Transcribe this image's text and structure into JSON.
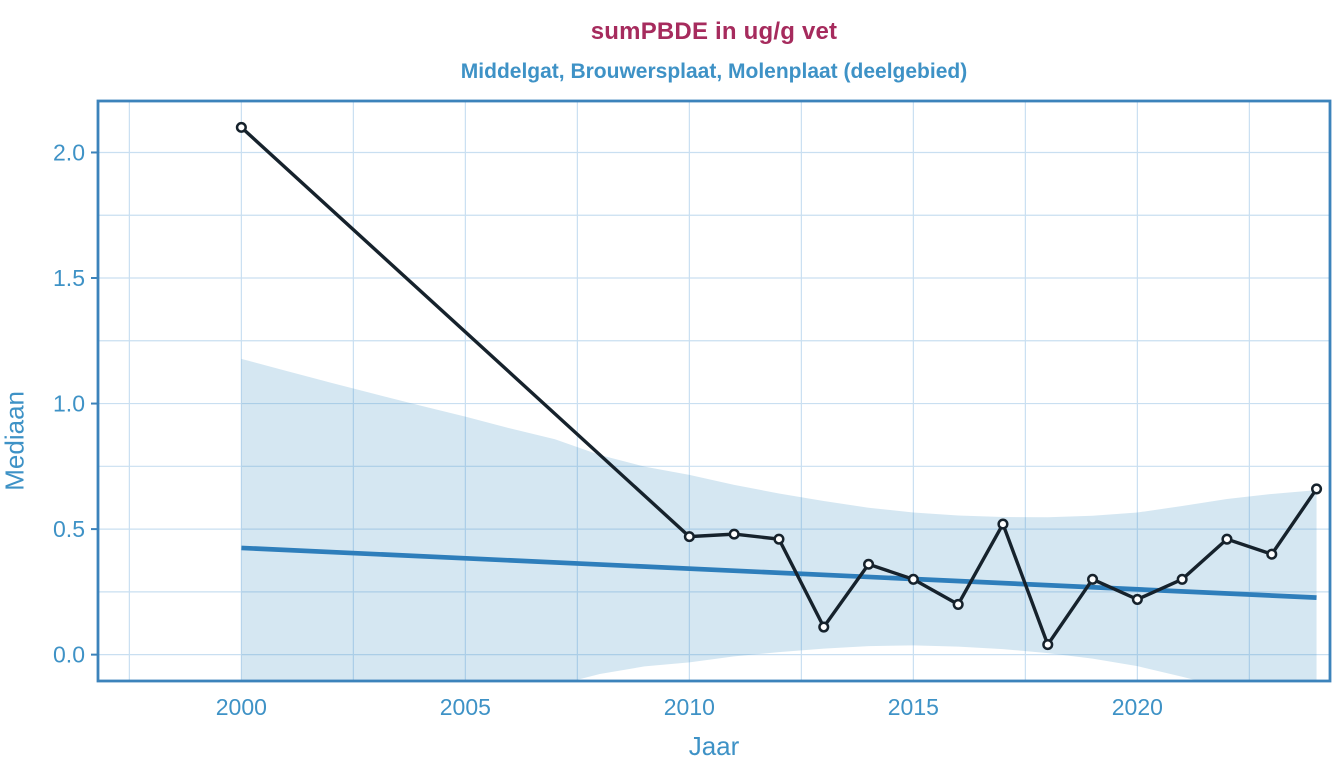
{
  "title": {
    "text": "sumPBDE in ug/g vet",
    "color": "#A62B5D"
  },
  "subtitle": {
    "text": "Middelgat, Brouwersplaat, Molenplaat (deelgebied)",
    "color": "#3E92C6"
  },
  "chart_data": {
    "type": "line",
    "title": "sumPBDE in ug/g vet",
    "subtitle": "Middelgat, Brouwersplaat, Molenplaat (deelgebied)",
    "xlabel": "Jaar",
    "ylabel": "Mediaan",
    "xlim": [
      1996.8,
      2024.3
    ],
    "ylim": [
      -0.105,
      2.205
    ],
    "grid": true,
    "legend": "none",
    "x_ticks": [
      {
        "v": 2000,
        "label": "2000"
      },
      {
        "v": 2005,
        "label": "2005"
      },
      {
        "v": 2010,
        "label": "2010"
      },
      {
        "v": 2015,
        "label": "2015"
      },
      {
        "v": 2020,
        "label": "2020"
      }
    ],
    "y_ticks": [
      {
        "v": 0.0,
        "label": "0.0"
      },
      {
        "v": 0.5,
        "label": "0.5"
      },
      {
        "v": 1.0,
        "label": "1.0"
      },
      {
        "v": 1.5,
        "label": "1.5"
      },
      {
        "v": 2.0,
        "label": "2.0"
      }
    ],
    "x_minor_step": 2.5,
    "y_minor_step": 0.25,
    "series": [
      {
        "name": "mediaan-observed",
        "type": "line+markers",
        "x": [
          2000,
          2010,
          2011,
          2012,
          2013,
          2014,
          2015,
          2016,
          2017,
          2018,
          2019,
          2020,
          2021,
          2022,
          2023,
          2024
        ],
        "y": [
          2.1,
          0.47,
          0.48,
          0.46,
          0.11,
          0.36,
          0.3,
          0.2,
          0.52,
          0.04,
          0.3,
          0.22,
          0.3,
          0.46,
          0.4,
          0.66
        ]
      },
      {
        "name": "trend-line",
        "type": "line",
        "x": [
          2000,
          2024
        ],
        "y": [
          0.425,
          0.227
        ]
      },
      {
        "name": "confidence-band",
        "type": "band",
        "x": [
          2000,
          2001,
          2002,
          2003,
          2004,
          2005,
          2006,
          2007,
          2008,
          2009,
          2010,
          2011,
          2012,
          2013,
          2014,
          2015,
          2016,
          2017,
          2018,
          2019,
          2020,
          2021,
          2022,
          2023,
          2024
        ],
        "upper": [
          1.178,
          1.13,
          1.083,
          1.037,
          0.992,
          0.948,
          0.901,
          0.858,
          0.795,
          0.749,
          0.716,
          0.676,
          0.642,
          0.612,
          0.585,
          0.566,
          0.554,
          0.548,
          0.547,
          0.553,
          0.566,
          0.592,
          0.62,
          0.64,
          0.655
        ],
        "lower": [
          -0.328,
          -0.296,
          -0.266,
          -0.236,
          -0.208,
          -0.18,
          -0.15,
          -0.123,
          -0.077,
          -0.047,
          -0.031,
          -0.007,
          0.01,
          0.024,
          0.034,
          0.037,
          0.032,
          0.022,
          0.006,
          -0.016,
          -0.046,
          -0.088,
          -0.133,
          -0.169,
          -0.201
        ]
      }
    ],
    "colors": {
      "title": "#A62B5D",
      "axis_text": "#3E92C6",
      "plot_border": "#3C83BB",
      "gridline": "#C9DFF1",
      "band_fill": "#4292C6",
      "band_opacity": 0.22,
      "trend_line": "#2E7EBB",
      "data_line": "#16222C",
      "marker_fill": "#FFFFFF",
      "background": "#FFFFFF"
    }
  }
}
